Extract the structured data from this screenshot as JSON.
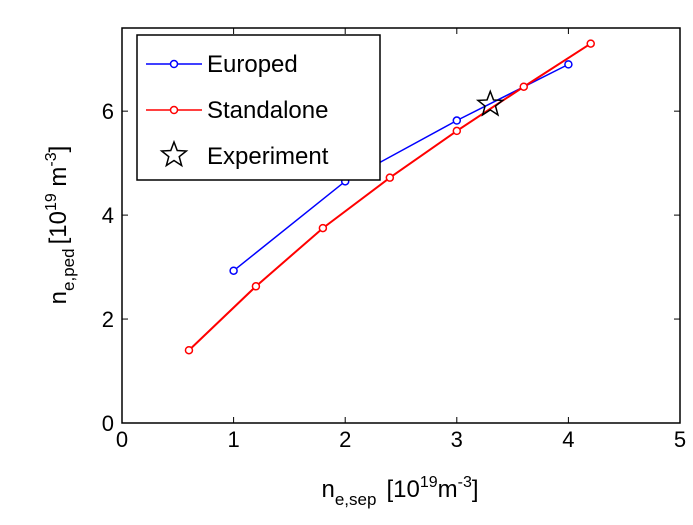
{
  "chart_data": {
    "type": "line",
    "title": "",
    "xlabel": {
      "base": "n",
      "sub": "e,sep",
      "unit_pre": "[10",
      "unit_exp": "19",
      "unit_mid": "m",
      "unit_exp2": "-3",
      "unit_post": "]"
    },
    "ylabel": {
      "base": "n",
      "sub": "e,ped",
      "unit_pre": "[10",
      "unit_exp": "19",
      "unit_mid": " m",
      "unit_exp2": "-3",
      "unit_post": "]"
    },
    "xlim": [
      0,
      5
    ],
    "ylim": [
      0,
      7.6
    ],
    "xticks": [
      "0",
      "1",
      "2",
      "3",
      "4",
      "5"
    ],
    "yticks": [
      "0",
      "2",
      "4",
      "6"
    ],
    "grid": false,
    "legend_position": "top-left",
    "series": [
      {
        "name": "Europed",
        "color": "#0000ff",
        "marker": "circle",
        "x": [
          1.0,
          2.0,
          3.0,
          4.0
        ],
        "y": [
          2.93,
          4.65,
          5.82,
          6.9
        ]
      },
      {
        "name": "Standalone",
        "color": "#ff0000",
        "marker": "circle",
        "x": [
          0.6,
          1.2,
          1.8,
          2.4,
          3.0,
          3.6,
          4.2
        ],
        "y": [
          1.4,
          2.63,
          3.75,
          4.72,
          5.62,
          6.47,
          7.3
        ]
      },
      {
        "name": "Experiment",
        "color": "#000000",
        "marker": "star",
        "x": [
          3.3
        ],
        "y": [
          6.13
        ]
      }
    ]
  }
}
